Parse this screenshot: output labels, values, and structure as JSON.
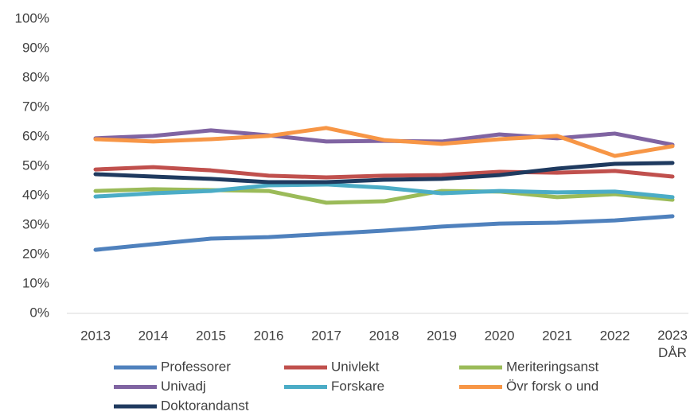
{
  "chart_data": {
    "type": "line",
    "categories": [
      "2013",
      "2014",
      "2015",
      "2016",
      "2017",
      "2018",
      "2019",
      "2020",
      "2021",
      "2022",
      "2023 DÅR"
    ],
    "series": [
      {
        "name": "Professorer",
        "color": "#4f81bd",
        "values": [
          21.6,
          23.5,
          25.4,
          25.9,
          27,
          28.1,
          29.5,
          30.5,
          30.8,
          31.6,
          33
        ]
      },
      {
        "name": "Univlekt",
        "color": "#c0504d",
        "values": [
          48.9,
          49.7,
          48.6,
          46.8,
          46.2,
          46.8,
          47,
          48.1,
          47.8,
          48.4,
          46.5
        ]
      },
      {
        "name": "Meriteringsanst",
        "color": "#9bbb59",
        "values": [
          41.6,
          42.2,
          41.9,
          41.6,
          37.6,
          38.1,
          41.6,
          41.4,
          39.5,
          40.5,
          38.6
        ]
      },
      {
        "name": "Univadj",
        "color": "#8064a2",
        "values": [
          59.5,
          60.3,
          62.2,
          60.5,
          58.4,
          58.6,
          58.4,
          60.8,
          59.5,
          61.1,
          57.3
        ]
      },
      {
        "name": "Forskare",
        "color": "#4bacc6",
        "values": [
          39.7,
          40.8,
          41.6,
          43.5,
          43.8,
          42.7,
          40.8,
          41.6,
          41.1,
          41.4,
          39.5
        ]
      },
      {
        "name": "Övr forsk o und",
        "color": "#f79646",
        "values": [
          59.2,
          58.4,
          59.2,
          60.3,
          63,
          58.9,
          57.6,
          59.2,
          60.3,
          53.5,
          56.8
        ]
      },
      {
        "name": "Doktorandanst",
        "color": "#1f3a5f",
        "values": [
          47.3,
          46.5,
          45.7,
          44.6,
          44.6,
          45.4,
          45.7,
          47,
          49.2,
          50.8,
          51.1
        ]
      }
    ],
    "ylim": [
      0,
      100
    ],
    "yticks": [
      {
        "value": 0,
        "label": "0%"
      },
      {
        "value": 10,
        "label": "10%"
      },
      {
        "value": 20,
        "label": "20%"
      },
      {
        "value": 30,
        "label": "30%"
      },
      {
        "value": 40,
        "label": "40%"
      },
      {
        "value": 50,
        "label": "50%"
      },
      {
        "value": 60,
        "label": "60%"
      },
      {
        "value": 70,
        "label": "70%"
      },
      {
        "value": 80,
        "label": "80%"
      },
      {
        "value": 90,
        "label": "90%"
      },
      {
        "value": 100,
        "label": "100%"
      }
    ],
    "grid": false,
    "legend": "bottom"
  }
}
